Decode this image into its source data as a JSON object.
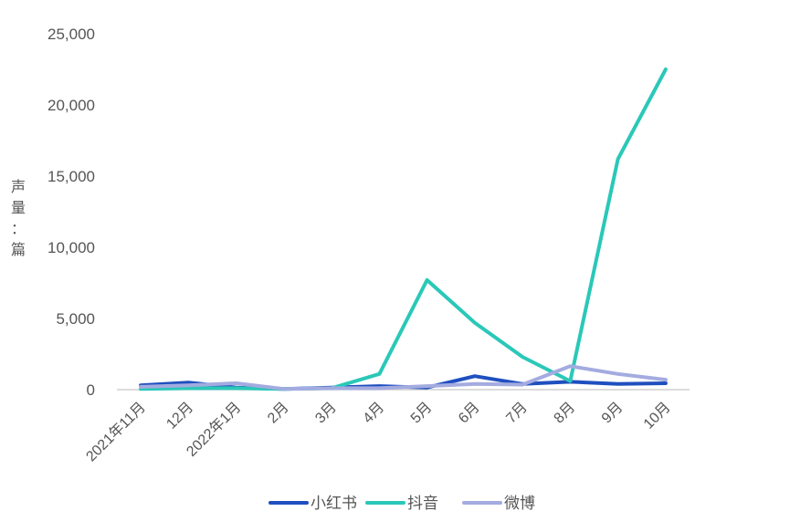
{
  "chart_data": {
    "type": "line",
    "title": "",
    "xlabel": "",
    "ylabel": "声量：篇",
    "categories": [
      "2021年11月",
      "12月",
      "2022年1月",
      "2月",
      "3月",
      "4月",
      "5月",
      "6月",
      "7月",
      "8月",
      "9月",
      "10月"
    ],
    "ylim": [
      0,
      25000
    ],
    "yticks": [
      0,
      5000,
      10000,
      15000,
      20000,
      25000
    ],
    "ytick_labels": [
      "0",
      "5,000",
      "10,000",
      "15,000",
      "20,000",
      "25,000"
    ],
    "grid": false,
    "legend_position": "bottom",
    "series": [
      {
        "name": "小红书",
        "color": "#1f4fbf",
        "values": [
          300,
          500,
          150,
          50,
          150,
          250,
          150,
          950,
          400,
          550,
          400,
          450
        ]
      },
      {
        "name": "抖音",
        "color": "#2ac8b8",
        "values": [
          50,
          100,
          100,
          50,
          100,
          1100,
          7700,
          4700,
          2300,
          600,
          16200,
          22500
        ]
      },
      {
        "name": "微博",
        "color": "#a3abe0",
        "values": [
          200,
          300,
          450,
          50,
          100,
          100,
          250,
          400,
          350,
          1650,
          1100,
          700
        ]
      }
    ]
  }
}
